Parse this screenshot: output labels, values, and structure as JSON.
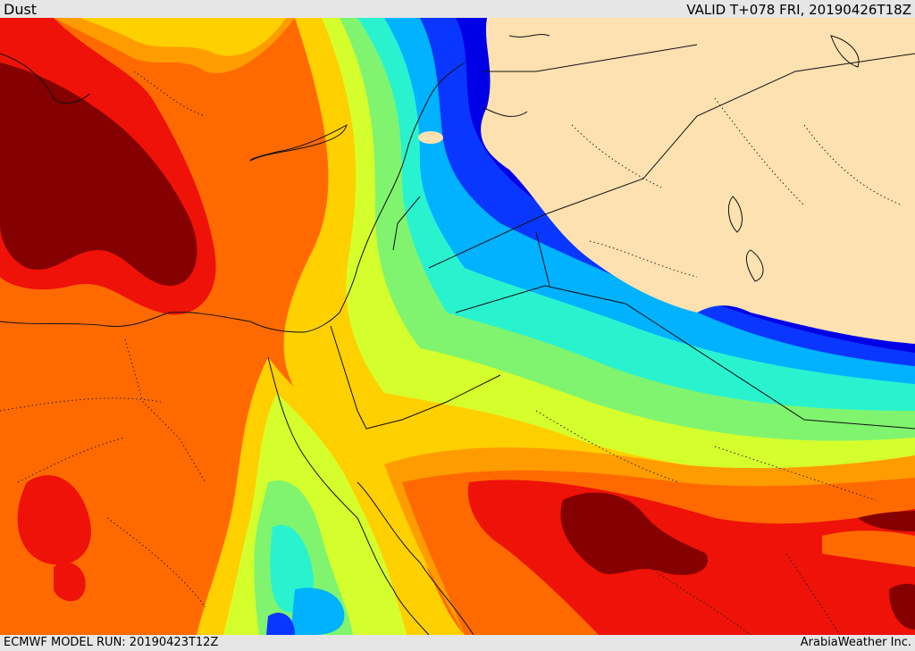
{
  "header": {
    "variable": "Dust",
    "valid_time": "VALID T+078 FRI, 20190426T18Z"
  },
  "footer": {
    "model_run": "ECMWF MODEL RUN: 20190423T12Z",
    "credit": "ArabiaWeather Inc."
  },
  "colors": {
    "land_no_data": "#fde1b0",
    "lowest": "#0000e6",
    "very_low": "#0a37ff",
    "low": "#00b2ff",
    "low_mid": "#29f3cf",
    "mid": "#80f46e",
    "mid_high": "#d5ff2c",
    "moderate": "#ffd000",
    "high": "#ff9c00",
    "higher": "#ff6a00",
    "very_high": "#ee1208",
    "extreme": "#850000",
    "borders": "#111111"
  }
}
